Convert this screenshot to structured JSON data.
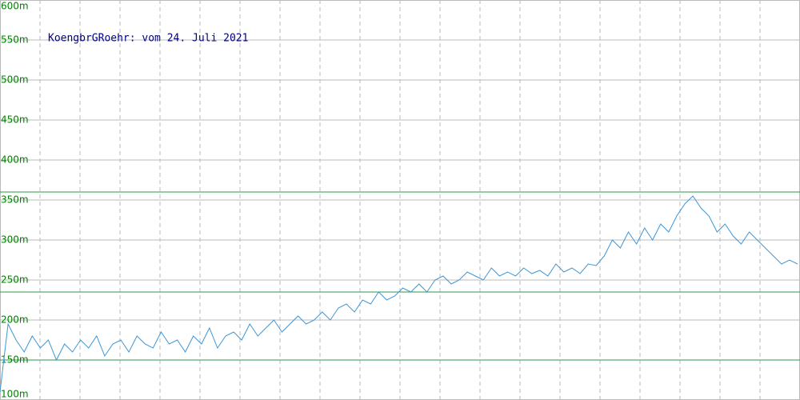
{
  "chart_data": {
    "type": "line",
    "title": "KoengbrGRoehr: vom 24. Juli 2021",
    "series": [
      {
        "color": "#3d96d6",
        "values": [
          110,
          195,
          175,
          160,
          180,
          165,
          175,
          150,
          170,
          160,
          175,
          165,
          180,
          155,
          170,
          175,
          160,
          180,
          170,
          165,
          185,
          170,
          175,
          160,
          180,
          170,
          190,
          165,
          180,
          185,
          175,
          195,
          180,
          190,
          200,
          185,
          195,
          205,
          195,
          200,
          210,
          200,
          215,
          220,
          210,
          225,
          220,
          235,
          225,
          230,
          240,
          235,
          245,
          235,
          250,
          255,
          245,
          250,
          260,
          255,
          250,
          265,
          255,
          260,
          255,
          265,
          258,
          262,
          255,
          270,
          260,
          265,
          258,
          270,
          268,
          280,
          300,
          290,
          310,
          295,
          315,
          300,
          320,
          310,
          330,
          345,
          355,
          340,
          330,
          310,
          320,
          305,
          295,
          310,
          300,
          290,
          280,
          270,
          275,
          270
        ]
      }
    ],
    "ylim": [
      100,
      600
    ],
    "yticks": [
      {
        "value": 100,
        "label": "100m"
      },
      {
        "value": 150,
        "label": "150m"
      },
      {
        "value": 200,
        "label": "200m"
      },
      {
        "value": 250,
        "label": "250m"
      },
      {
        "value": 300,
        "label": "300m"
      },
      {
        "value": 350,
        "label": "350m"
      },
      {
        "value": 400,
        "label": "400m"
      },
      {
        "value": 450,
        "label": "450m"
      },
      {
        "value": 500,
        "label": "500m"
      },
      {
        "value": 550,
        "label": "550m"
      },
      {
        "value": 600,
        "label": "600m"
      }
    ],
    "tick_color": "#008000",
    "grid": true,
    "reference_lines": [
      360,
      235,
      150
    ],
    "reference_color": "#2e9a4a"
  }
}
